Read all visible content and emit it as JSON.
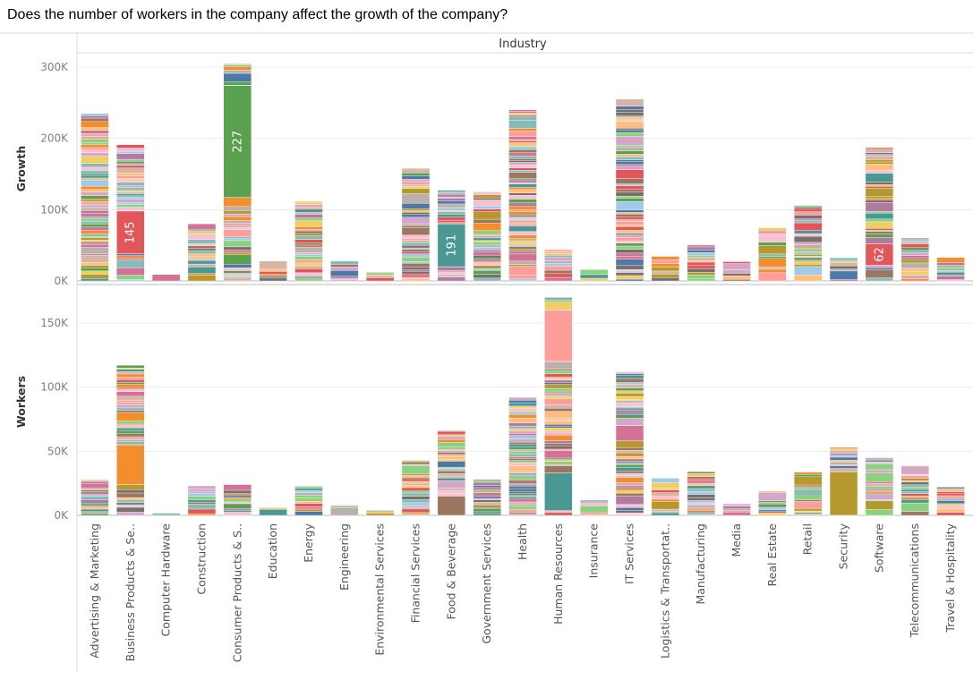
{
  "title": "Does the number of workers in the company affect the growth of the company?",
  "chart_data": {
    "type": "bar",
    "stacked": true,
    "column_header": "Industry",
    "categories": [
      "Advertising & Marketing",
      "Business Products & Se..",
      "Computer Hardware",
      "Construction",
      "Consumer Products & S..",
      "Education",
      "Energy",
      "Engineering",
      "Environmental Services",
      "Financial Services",
      "Food & Beverage",
      "Government Services",
      "Health",
      "Human Resources",
      "Insurance",
      "IT Services",
      "Logistics & Transportat..",
      "Manufacturing",
      "Media",
      "Real Estate",
      "Retail",
      "Security",
      "Software",
      "Telecommunications",
      "Travel & Hospitality"
    ],
    "panels": [
      {
        "name": "growth",
        "ylabel": "Growth",
        "ylim": [
          0,
          310000
        ],
        "yticks": [
          0,
          100000,
          200000,
          300000
        ],
        "ytick_labels": [
          "0K",
          "100K",
          "200K",
          "300K"
        ],
        "totals": [
          235000,
          191000,
          9000,
          80000,
          305000,
          28000,
          112000,
          28000,
          12000,
          158000,
          127000,
          125000,
          240000,
          44000,
          16000,
          255000,
          35000,
          51000,
          27000,
          75000,
          106000,
          33000,
          187000,
          60000,
          33000
        ],
        "highlights": [
          {
            "category": "Business Products & Se..",
            "label": "145",
            "from": 38000,
            "to": 98000,
            "color": "#e15759"
          },
          {
            "category": "Consumer Products & S..",
            "label": "227",
            "from": 117000,
            "to": 274000,
            "color": "#59a14f"
          },
          {
            "category": "Food & Beverage",
            "label": "191",
            "from": 20000,
            "to": 80000,
            "color": "#499894"
          },
          {
            "category": "Software",
            "label": "62",
            "from": 22000,
            "to": 52000,
            "color": "#e15759"
          }
        ],
        "grid": true
      },
      {
        "name": "workers",
        "ylabel": "Workers",
        "ylim": [
          0,
          172000
        ],
        "yticks": [
          0,
          50000,
          100000,
          150000
        ],
        "ytick_labels": [
          "0K",
          "50K",
          "100K",
          "150K"
        ],
        "totals": [
          28000,
          117000,
          2000,
          23000,
          24000,
          6000,
          23000,
          8000,
          4000,
          43000,
          66000,
          28000,
          92000,
          170000,
          12000,
          112000,
          29000,
          34000,
          9000,
          19000,
          34000,
          53000,
          45000,
          39000,
          22000
        ],
        "highlights": [
          {
            "category": "Business Products & Se..",
            "label": "",
            "from": 24000,
            "to": 55000,
            "color": "#f28e2b"
          },
          {
            "category": "Human Resources",
            "label": "",
            "from": 4000,
            "to": 33000,
            "color": "#499894"
          },
          {
            "category": "Human Resources",
            "label": "",
            "from": 120000,
            "to": 160000,
            "color": "#ff9d9a"
          },
          {
            "category": "Security",
            "label": "",
            "from": 0,
            "to": 34000,
            "color": "#b6992d"
          },
          {
            "category": "Food & Beverage",
            "label": "",
            "from": 0,
            "to": 15000,
            "color": "#9c755f"
          },
          {
            "category": "IT Services",
            "label": "",
            "from": 58000,
            "to": 70000,
            "color": "#d37295"
          }
        ],
        "grid": true
      }
    ],
    "palette": [
      "#4e79a7",
      "#a0cbe8",
      "#f28e2b",
      "#ffbe7d",
      "#59a14f",
      "#8cd17d",
      "#b6992d",
      "#f1ce63",
      "#499894",
      "#86bcb6",
      "#e15759",
      "#ff9d9a",
      "#79706e",
      "#bab0ac",
      "#d37295",
      "#fabfd2",
      "#b07aa1",
      "#d4a6c8",
      "#9d7660",
      "#d7b5a6"
    ]
  }
}
